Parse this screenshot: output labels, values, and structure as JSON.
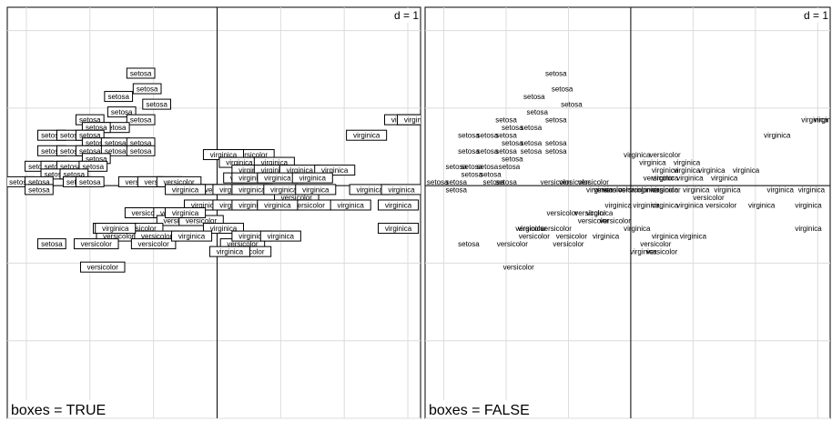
{
  "chart_data": [
    {
      "type": "scatter",
      "subtitle": "boxes = TRUE",
      "scale_label": "d = 1",
      "boxes": true,
      "grid": true,
      "xlim": [
        -3.3,
        3.2
      ],
      "ylim": [
        -3.0,
        2.3
      ],
      "grid_step": 1,
      "points": [
        {
          "label": "setosa",
          "x": -1.2,
          "y": 1.45
        },
        {
          "label": "setosa",
          "x": -1.1,
          "y": 1.25
        },
        {
          "label": "setosa",
          "x": -1.55,
          "y": 1.15
        },
        {
          "label": "setosa",
          "x": -0.95,
          "y": 1.05
        },
        {
          "label": "setosa",
          "x": -1.5,
          "y": 0.95
        },
        {
          "label": "setosa",
          "x": -2.0,
          "y": 0.85
        },
        {
          "label": "setosa",
          "x": -1.2,
          "y": 0.85
        },
        {
          "label": "setosa",
          "x": -1.6,
          "y": 0.75
        },
        {
          "label": "setosa",
          "x": -1.9,
          "y": 0.75
        },
        {
          "label": "setosa",
          "x": -2.6,
          "y": 0.65
        },
        {
          "label": "setosa",
          "x": -2.3,
          "y": 0.65
        },
        {
          "label": "setosa",
          "x": -2.0,
          "y": 0.65
        },
        {
          "label": "setosa",
          "x": -1.9,
          "y": 0.55
        },
        {
          "label": "setosa",
          "x": -1.6,
          "y": 0.55
        },
        {
          "label": "setosa",
          "x": -1.2,
          "y": 0.55
        },
        {
          "label": "setosa",
          "x": -2.6,
          "y": 0.45
        },
        {
          "label": "setosa",
          "x": -2.3,
          "y": 0.45
        },
        {
          "label": "setosa",
          "x": -2.0,
          "y": 0.45
        },
        {
          "label": "setosa",
          "x": -1.6,
          "y": 0.45
        },
        {
          "label": "setosa",
          "x": -1.2,
          "y": 0.45
        },
        {
          "label": "setosa",
          "x": -1.9,
          "y": 0.35
        },
        {
          "label": "setosa",
          "x": -2.8,
          "y": 0.25
        },
        {
          "label": "setosa",
          "x": -2.55,
          "y": 0.25
        },
        {
          "label": "setosa",
          "x": -2.3,
          "y": 0.25
        },
        {
          "label": "setosa",
          "x": -1.95,
          "y": 0.25
        },
        {
          "label": "setosa",
          "x": -2.55,
          "y": 0.15
        },
        {
          "label": "setosa",
          "x": -2.25,
          "y": 0.15
        },
        {
          "label": "setosa",
          "x": -3.1,
          "y": 0.05
        },
        {
          "label": "setosa",
          "x": -2.8,
          "y": 0.05
        },
        {
          "label": "setosa",
          "x": -2.2,
          "y": 0.05
        },
        {
          "label": "setosa",
          "x": -2.0,
          "y": 0.05
        },
        {
          "label": "setosa",
          "x": -2.8,
          "y": -0.05
        },
        {
          "label": "setosa",
          "x": -2.6,
          "y": -0.75
        },
        {
          "label": "versicolor",
          "x": 0.55,
          "y": 0.4
        },
        {
          "label": "versicolor",
          "x": 0.45,
          "y": 0.1
        },
        {
          "label": "versicolor",
          "x": -1.2,
          "y": 0.05
        },
        {
          "label": "versicolor",
          "x": -0.9,
          "y": 0.05
        },
        {
          "label": "versicolor",
          "x": -0.6,
          "y": 0.05
        },
        {
          "label": "versicolor",
          "x": -0.35,
          "y": -0.05
        },
        {
          "label": "versicolor",
          "x": -0.2,
          "y": -0.05
        },
        {
          "label": "versicolor",
          "x": 0.05,
          "y": -0.05
        },
        {
          "label": "versicolor",
          "x": 0.55,
          "y": -0.05
        },
        {
          "label": "versicolor",
          "x": 1.25,
          "y": -0.15
        },
        {
          "label": "versicolor",
          "x": 1.45,
          "y": -0.25
        },
        {
          "label": "versicolor",
          "x": -1.1,
          "y": -0.35
        },
        {
          "label": "versicolor",
          "x": -0.65,
          "y": -0.35
        },
        {
          "label": "versicolor",
          "x": -0.6,
          "y": -0.45
        },
        {
          "label": "versicolor",
          "x": -0.25,
          "y": -0.45
        },
        {
          "label": "versicolor",
          "x": -1.6,
          "y": -0.55
        },
        {
          "label": "versicolor",
          "x": -1.2,
          "y": -0.55
        },
        {
          "label": "versicolor",
          "x": -1.55,
          "y": -0.65
        },
        {
          "label": "versicolor",
          "x": -0.95,
          "y": -0.65
        },
        {
          "label": "versicolor",
          "x": -1.9,
          "y": -0.75
        },
        {
          "label": "versicolor",
          "x": -1.0,
          "y": -0.75
        },
        {
          "label": "versicolor",
          "x": 0.4,
          "y": -0.75
        },
        {
          "label": "versicolor",
          "x": 0.5,
          "y": -0.85
        },
        {
          "label": "versicolor",
          "x": -1.8,
          "y": -1.05
        },
        {
          "label": "virginica",
          "x": 2.95,
          "y": 0.85
        },
        {
          "label": "virginica",
          "x": 3.15,
          "y": 0.85
        },
        {
          "label": "virginica",
          "x": 2.35,
          "y": 0.65
        },
        {
          "label": "virginica",
          "x": 0.1,
          "y": 0.4
        },
        {
          "label": "virginica",
          "x": 0.35,
          "y": 0.3
        },
        {
          "label": "virginica",
          "x": 0.9,
          "y": 0.3
        },
        {
          "label": "virginica",
          "x": 0.55,
          "y": 0.2
        },
        {
          "label": "virginica",
          "x": 0.9,
          "y": 0.2
        },
        {
          "label": "virginica",
          "x": 1.3,
          "y": 0.2
        },
        {
          "label": "virginica",
          "x": 1.85,
          "y": 0.2
        },
        {
          "label": "virginica",
          "x": 0.55,
          "y": 0.1
        },
        {
          "label": "virginica",
          "x": 0.95,
          "y": 0.1
        },
        {
          "label": "virginica",
          "x": 1.5,
          "y": 0.1
        },
        {
          "label": "virginica",
          "x": -0.5,
          "y": -0.05
        },
        {
          "label": "virginica",
          "x": 0.25,
          "y": -0.05
        },
        {
          "label": "virginica",
          "x": 0.55,
          "y": -0.05
        },
        {
          "label": "virginica",
          "x": 1.05,
          "y": -0.05
        },
        {
          "label": "virginica",
          "x": 1.55,
          "y": -0.05
        },
        {
          "label": "virginica",
          "x": 2.4,
          "y": -0.05
        },
        {
          "label": "virginica",
          "x": 2.9,
          "y": -0.05
        },
        {
          "label": "virginica",
          "x": -0.2,
          "y": -0.25
        },
        {
          "label": "virginica",
          "x": 0.25,
          "y": -0.25
        },
        {
          "label": "virginica",
          "x": 0.55,
          "y": -0.25
        },
        {
          "label": "virginica",
          "x": 0.95,
          "y": -0.25
        },
        {
          "label": "virginica",
          "x": 2.1,
          "y": -0.25
        },
        {
          "label": "virginica",
          "x": 2.85,
          "y": -0.25
        },
        {
          "label": "virginica",
          "x": -0.5,
          "y": -0.35
        },
        {
          "label": "virginica",
          "x": 0.1,
          "y": -0.55
        },
        {
          "label": "virginica",
          "x": 2.85,
          "y": -0.55
        },
        {
          "label": "virginica",
          "x": -1.6,
          "y": -0.55
        },
        {
          "label": "virginica",
          "x": -0.4,
          "y": -0.65
        },
        {
          "label": "virginica",
          "x": 0.55,
          "y": -0.65
        },
        {
          "label": "virginica",
          "x": 1.0,
          "y": -0.65
        },
        {
          "label": "virginica",
          "x": 0.2,
          "y": -0.85
        }
      ]
    },
    {
      "type": "scatter",
      "subtitle": "boxes = FALSE",
      "scale_label": "d = 1",
      "boxes": false,
      "grid": true,
      "xlim": [
        -3.3,
        3.2
      ],
      "ylim": [
        -3.0,
        2.3
      ],
      "grid_step": 1,
      "points_same_as_panel": 0
    }
  ]
}
